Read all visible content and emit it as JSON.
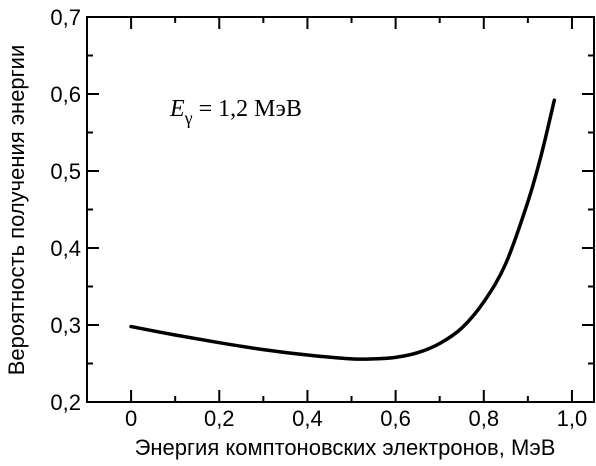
{
  "chart_data": {
    "type": "line",
    "xlabel": "Энергия комптоновских электронов, МэВ",
    "ylabel": "Вероятность получения энергии",
    "xlim": [
      -0.1,
      1.05
    ],
    "ylim": [
      0.2,
      0.7
    ],
    "x_ticks": [
      0,
      0.2,
      0.4,
      0.6,
      0.8,
      1.0
    ],
    "x_tick_labels": [
      "0",
      "0,2",
      "0,4",
      "0,6",
      "0,8",
      "1,0"
    ],
    "y_ticks": [
      0.2,
      0.3,
      0.4,
      0.5,
      0.6,
      0.7
    ],
    "y_tick_labels": [
      "0,2",
      "0,3",
      "0,4",
      "0,5",
      "0,6",
      "0,7"
    ],
    "annotation": {
      "symbol": "E",
      "subscript": "γ",
      "text": " = 1,2 МэВ"
    },
    "series": [
      {
        "x": [
          0.0,
          0.1,
          0.2,
          0.3,
          0.4,
          0.5,
          0.55,
          0.6,
          0.65,
          0.7,
          0.75,
          0.8,
          0.85,
          0.9,
          0.93,
          0.96
        ],
        "y": [
          0.298,
          0.287,
          0.277,
          0.268,
          0.261,
          0.256,
          0.256,
          0.258,
          0.264,
          0.276,
          0.296,
          0.33,
          0.38,
          0.46,
          0.52,
          0.592
        ]
      }
    ]
  }
}
